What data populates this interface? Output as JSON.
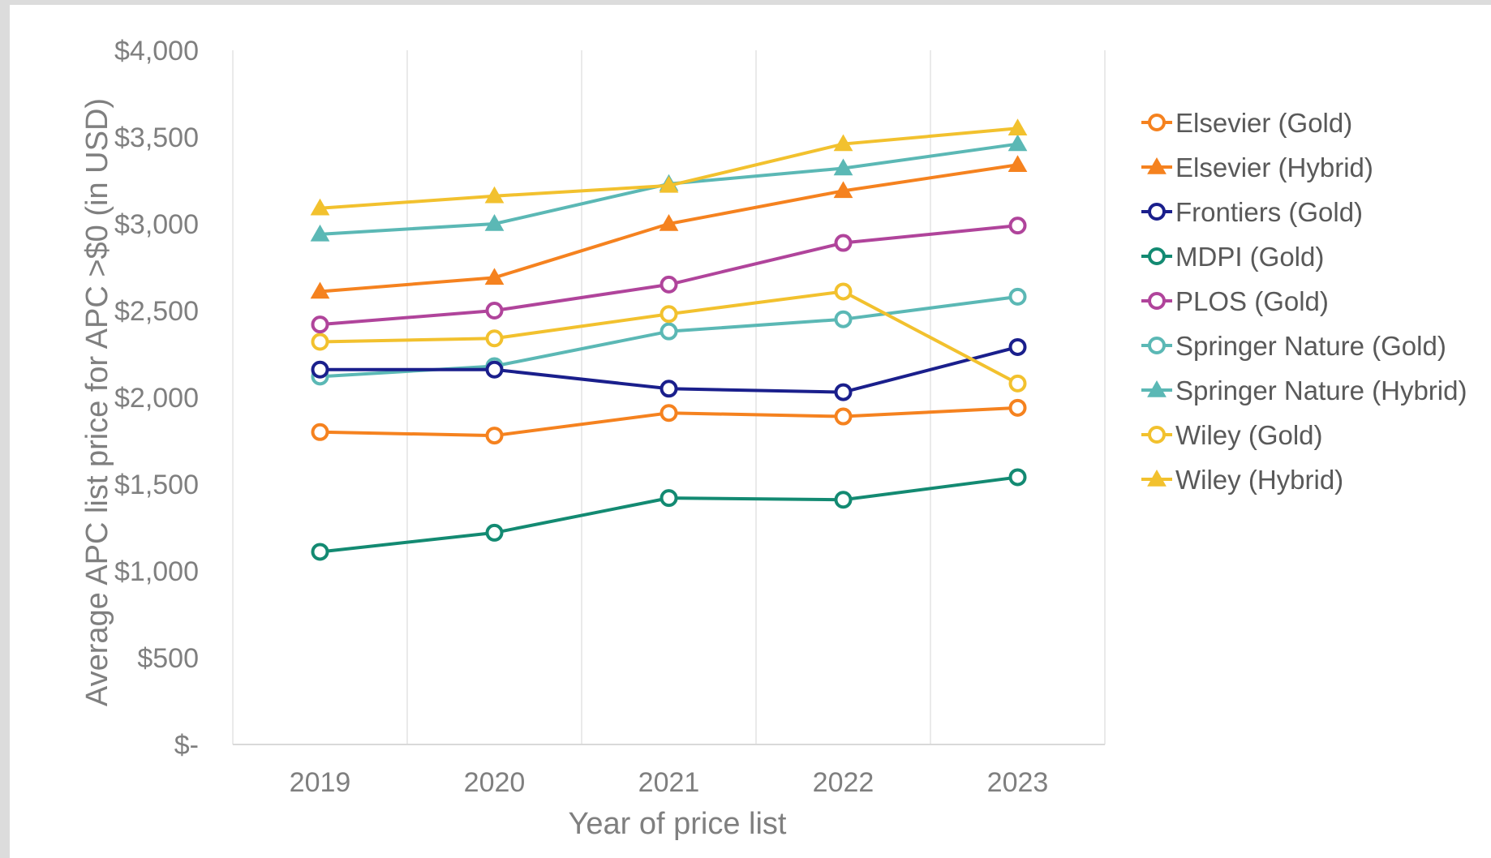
{
  "chart_data": {
    "type": "line",
    "title": "",
    "xlabel": "Year of price list",
    "ylabel": "Average APC list price for APC >$0 (in USD)",
    "categories": [
      "2019",
      "2020",
      "2021",
      "2022",
      "2023"
    ],
    "y_ticks": [
      "$-",
      "$500",
      "$1,000",
      "$1,500",
      "$2,000",
      "$2,500",
      "$3,000",
      "$3,500",
      "$4,000"
    ],
    "ylim": [
      0,
      4000
    ],
    "grid": "vertical",
    "legend_position": "right",
    "series": [
      {
        "name": "Elsevier (Gold)",
        "color": "#f5821f",
        "marker": "circle",
        "values": [
          1800,
          1780,
          1910,
          1890,
          1940
        ]
      },
      {
        "name": "Elsevier (Hybrid)",
        "color": "#f5821f",
        "marker": "triangle",
        "values": [
          2610,
          2690,
          3000,
          3190,
          3340
        ]
      },
      {
        "name": "Frontiers (Gold)",
        "color": "#1a1f8c",
        "marker": "circle",
        "values": [
          2160,
          2160,
          2050,
          2030,
          2290
        ]
      },
      {
        "name": "MDPI (Gold)",
        "color": "#138a72",
        "marker": "circle",
        "values": [
          1110,
          1220,
          1420,
          1410,
          1540
        ]
      },
      {
        "name": "PLOS (Gold)",
        "color": "#b0449b",
        "marker": "circle",
        "values": [
          2420,
          2500,
          2650,
          2890,
          2990
        ]
      },
      {
        "name": "Springer Nature (Gold)",
        "color": "#5bb8b5",
        "marker": "circle",
        "values": [
          2120,
          2180,
          2380,
          2450,
          2580
        ]
      },
      {
        "name": "Springer Nature (Hybrid)",
        "color": "#5bb8b5",
        "marker": "triangle",
        "values": [
          2940,
          3000,
          3230,
          3320,
          3460
        ]
      },
      {
        "name": "Wiley (Gold)",
        "color": "#f2c12e",
        "marker": "circle",
        "values": [
          2320,
          2340,
          2480,
          2610,
          2080
        ]
      },
      {
        "name": "Wiley (Hybrid)",
        "color": "#f2c12e",
        "marker": "triangle",
        "values": [
          3090,
          3160,
          3220,
          3460,
          3550
        ]
      }
    ]
  }
}
